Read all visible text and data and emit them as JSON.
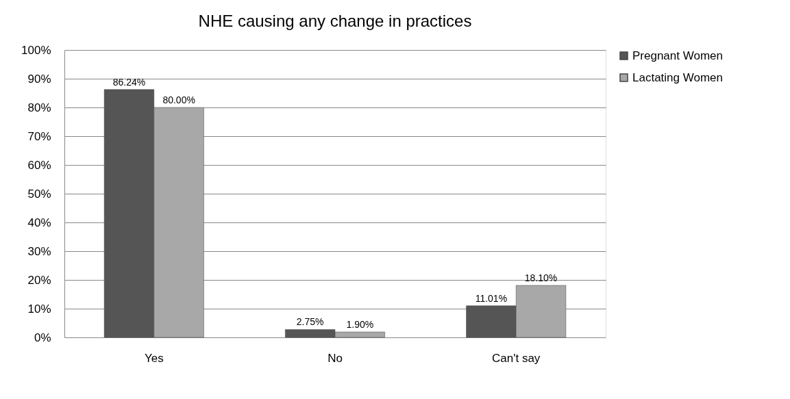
{
  "chart_data": {
    "type": "bar",
    "title": "NHE causing any change in practices",
    "categories": [
      "Yes",
      "No",
      "Can't say"
    ],
    "series": [
      {
        "name": "Pregnant Women",
        "color": "#555555",
        "values": [
          86.24,
          2.75,
          11.01
        ],
        "value_labels": [
          "86.24%",
          "2.75%",
          "11.01%"
        ]
      },
      {
        "name": "Lactating Women",
        "color": "#a8a8a8",
        "values": [
          80.0,
          1.9,
          18.1
        ],
        "value_labels": [
          "80.00%",
          "1.90%",
          "18.10%"
        ]
      }
    ],
    "ylim": [
      0,
      100
    ],
    "yticks": [
      {
        "value": 0,
        "label": "0%"
      },
      {
        "value": 10,
        "label": "10%"
      },
      {
        "value": 20,
        "label": "20%"
      },
      {
        "value": 30,
        "label": "30%"
      },
      {
        "value": 40,
        "label": "40%"
      },
      {
        "value": 50,
        "label": "50%"
      },
      {
        "value": 60,
        "label": "60%"
      },
      {
        "value": 70,
        "label": "70%"
      },
      {
        "value": 80,
        "label": "80%"
      },
      {
        "value": 90,
        "label": "90%"
      },
      {
        "value": 100,
        "label": "100%"
      }
    ],
    "grid": "y",
    "legend": "right"
  }
}
